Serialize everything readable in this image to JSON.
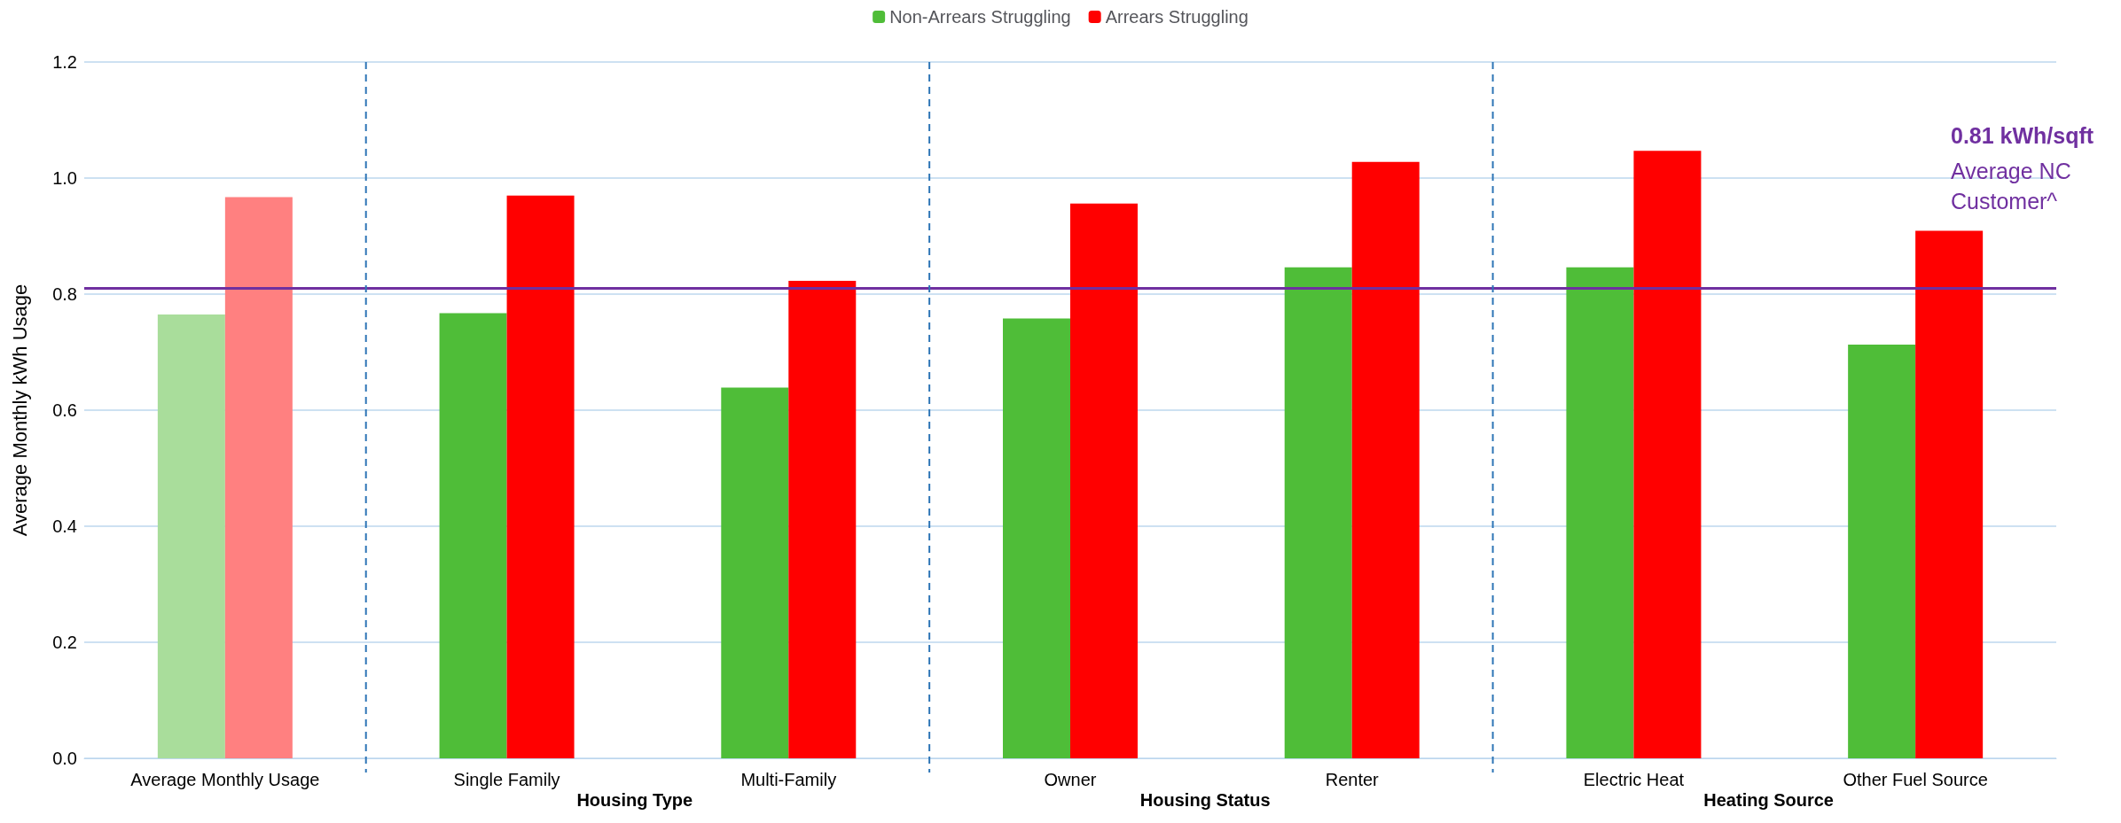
{
  "chart_data": {
    "type": "bar",
    "ylabel": "Average Monthly kWh Usage",
    "categories": [
      "Average Monthly Usage",
      "Single Family",
      "Multi-Family",
      "Owner",
      "Renter",
      "Electric Heat",
      "Other Fuel Source"
    ],
    "series": [
      {
        "name": "Non-Arrears Struggling",
        "color": "#4fbd38",
        "colors": [
          "#a9dd9b",
          "#4fbd38",
          "#4fbd38",
          "#4fbd38",
          "#4fbd38",
          "#4fbd38",
          "#4fbd38"
        ],
        "values": [
          0.765,
          0.767,
          0.639,
          0.758,
          0.846,
          0.846,
          0.713
        ]
      },
      {
        "name": "Arrears Struggling",
        "color": "#ff0000",
        "colors": [
          "#ff8080",
          "#ff0000",
          "#ff0000",
          "#ff0000",
          "#ff0000",
          "#ff0000",
          "#ff0000"
        ],
        "values": [
          0.967,
          0.97,
          0.823,
          0.956,
          1.028,
          1.047,
          0.909
        ]
      }
    ],
    "ylim": [
      0,
      1.2
    ],
    "yticks": [
      {
        "value": 0,
        "label": "0.0"
      },
      {
        "value": 0.2,
        "label": "0.2"
      },
      {
        "value": 0.4,
        "label": "0.4"
      },
      {
        "value": 0.6,
        "label": "0.6"
      },
      {
        "value": 0.8,
        "label": "0.8"
      },
      {
        "value": 1,
        "label": "1.0"
      },
      {
        "value": 1.2,
        "label": "1.2"
      }
    ],
    "grid": "y",
    "legend": "top",
    "ref_lines": [
      {
        "axis": "y",
        "value": 0.81,
        "label": "0.81 kWh/sqft",
        "color": "#7030a0",
        "line_style": "solid"
      }
    ],
    "annotations": [
      "Average NC Customer^",
      "Housing Type",
      "Housing Status",
      "Heating Source"
    ]
  }
}
